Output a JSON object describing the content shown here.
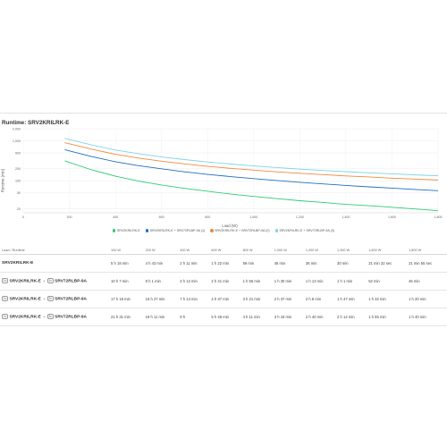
{
  "page": {
    "title": "Runtime: SRV2KRILRK-E"
  },
  "chart_data": {
    "type": "line",
    "title": "Runtime: SRV2KRILRK-E",
    "xlabel": "Load (W)",
    "ylabel": "Runtime (min)",
    "xlim": [
      0,
      1800
    ],
    "y_scale": "log",
    "ylim": [
      16,
      2000
    ],
    "x_ticks": [
      "0",
      "200",
      "400",
      "600",
      "800",
      "1,000",
      "1,200",
      "1,400",
      "1,600",
      "1,800"
    ],
    "y_ticks": [
      "2,000",
      "1,000",
      "500",
      "200",
      "100",
      "50",
      "20"
    ],
    "grid": true,
    "legend_position": "bottom",
    "series": [
      {
        "name": "SRV2KRILRK-E",
        "color": "#2ecc71",
        "x": [
          180,
          300,
          400,
          500,
          600,
          700,
          800,
          900,
          1000,
          1100,
          1200,
          1300,
          1400,
          1500,
          1600,
          1700,
          1800
        ],
        "y": [
          315,
          186,
          131,
          99,
          79,
          65,
          55,
          47,
          41,
          36,
          32,
          29,
          26,
          24,
          22,
          20,
          18
        ]
      },
      {
        "name": "SRV2KRILRK-E + SRV72RLBP-9A (1)",
        "color": "#1f6fbf",
        "x": [
          180,
          300,
          400,
          500,
          600,
          700,
          800,
          900,
          1000,
          1100,
          1200,
          1300,
          1400,
          1500,
          1600,
          1700,
          1800
        ],
        "y": [
          600,
          400,
          300,
          240,
          200,
          168,
          145,
          128,
          114,
          102,
          92,
          84,
          77,
          71,
          66,
          61,
          57
        ]
      },
      {
        "name": "SRV2KRILRK-E + SRV72RLBP-9A (2)",
        "color": "#f08a3c",
        "x": [
          180,
          300,
          400,
          500,
          600,
          700,
          800,
          900,
          1000,
          1100,
          1200,
          1300,
          1400,
          1500,
          1600,
          1700,
          1800
        ],
        "y": [
          900,
          610,
          460,
          370,
          310,
          265,
          230,
          205,
          185,
          168,
          155,
          143,
          133,
          125,
          117,
          111,
          105
        ]
      },
      {
        "name": "SRV2KRILRK-E + SRV72RLBP-9A (3)",
        "color": "#7fd3e6",
        "x": [
          180,
          300,
          400,
          500,
          600,
          700,
          800,
          900,
          1000,
          1100,
          1200,
          1300,
          1400,
          1500,
          1600,
          1700,
          1800
        ],
        "y": [
          1150,
          780,
          590,
          475,
          395,
          340,
          296,
          263,
          236,
          215,
          197,
          182,
          170,
          159,
          150,
          141,
          134
        ]
      }
    ]
  },
  "table": {
    "headers": [
      "Load / Runtime",
      "100 W",
      "200 W",
      "400 W",
      "600 W",
      "800 W",
      "1,000 W",
      "1,200 W",
      "1,400 W",
      "1,600 W",
      "1,800 W"
    ],
    "rows": [
      {
        "model": "SRV2KRILRK-E",
        "badge1": "",
        "plus": "",
        "badge2": "",
        "ext": "",
        "cells": [
          "5 h 18 min",
          "4 h 43 min",
          "2 h 11 min",
          "1 h 22 min",
          "59 min",
          "45 min",
          "36 min",
          "30 min",
          "21 min 32 sec",
          "21 min 55 sec"
        ]
      },
      {
        "model": "SRV2KRILRK-E",
        "badge1": "1x",
        "plus": "+",
        "badge2": "1x",
        "ext": "SRV72RLBP-9A",
        "cells": [
          "10 h 7 min",
          "9 h 1 min",
          "4 h 12 min",
          "2 h 41 min",
          "1 h 56 min",
          "1 h 30 min",
          "1 h 13 min",
          "1 h 1 min",
          "52 min",
          "45 min"
        ]
      },
      {
        "model": "SRV2KRILRK-E",
        "badge1": "1x",
        "plus": "+",
        "badge2": "2x",
        "ext": "SRV72RLBP-9A",
        "cells": [
          "17 h 18 min",
          "15 h 27 min",
          "7 h 14 min",
          "4 h 37 min",
          "3 h 21 min",
          "2 h 37 min",
          "2 h 8 min",
          "1 h 47 min",
          "1 h 32 min",
          "1 h 20 min"
        ]
      },
      {
        "model": "SRV2KRILRK-E",
        "badge1": "1x",
        "plus": "+",
        "badge2": "3x",
        "ext": "SRV72RLBP-9A",
        "cells": [
          "21 h 31 min",
          "19 h 11 min",
          "9 h",
          "5 h 45 min",
          "4 h 11 min",
          "3 h 16 min",
          "2 h 40 min",
          "2 h 14 min",
          "1 h 55 min",
          "1 h 40 min"
        ]
      }
    ]
  }
}
